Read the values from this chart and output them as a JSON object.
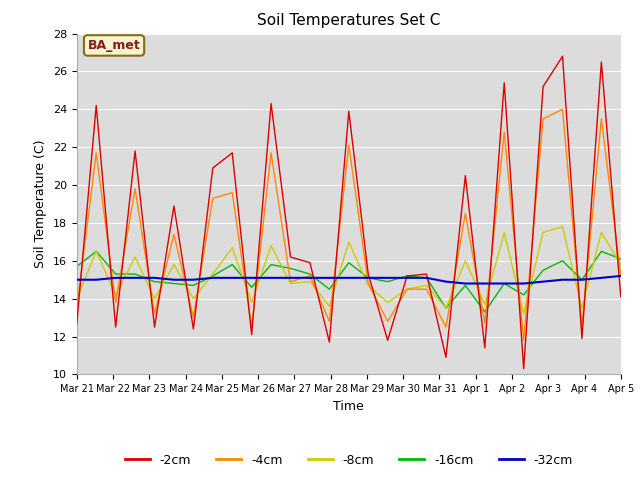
{
  "title": "Soil Temperatures Set C",
  "xlabel": "Time",
  "ylabel": "Soil Temperature (C)",
  "ylim": [
    10,
    28
  ],
  "xlim": [
    0,
    15
  ],
  "fig_bg_color": "#ffffff",
  "plot_bg_color": "#dcdcdc",
  "annotation_text": "BA_met",
  "annotation_bg": "#f5f5d0",
  "annotation_border": "#8b6914",
  "series_colors": {
    "-2cm": "#dd0000",
    "-4cm": "#ff8800",
    "-8cm": "#cccc00",
    "-16cm": "#00bb00",
    "-32cm": "#0000cc"
  },
  "x_tick_labels": [
    "Mar 21",
    "Mar 22",
    "Mar 23",
    "Mar 24",
    "Mar 25",
    "Mar 26",
    "Mar 27",
    "Mar 28",
    "Mar 29",
    "Mar 30",
    "Mar 31",
    "Apr 1",
    "Apr 2",
    "Apr 3",
    "Apr 4",
    "Apr 5"
  ],
  "x_tick_positions": [
    0,
    1,
    2,
    3,
    4,
    5,
    6,
    7,
    8,
    9,
    10,
    11,
    12,
    13,
    14,
    15
  ],
  "series_2cm": [
    12.7,
    24.2,
    12.5,
    21.8,
    12.5,
    18.9,
    12.4,
    20.9,
    21.7,
    12.1,
    24.3,
    16.2,
    15.9,
    11.7,
    23.9,
    15.3,
    11.8,
    15.2,
    15.3,
    10.9,
    20.5,
    11.4,
    25.4,
    10.3,
    25.2,
    26.8,
    11.9,
    26.5,
    14.1
  ],
  "series_4cm": [
    13.5,
    21.7,
    13.8,
    19.8,
    13.2,
    17.4,
    13.0,
    19.3,
    19.6,
    12.5,
    21.7,
    14.9,
    15.2,
    12.8,
    22.1,
    14.8,
    12.8,
    14.5,
    14.5,
    12.5,
    18.5,
    12.7,
    22.8,
    11.8,
    23.5,
    24.0,
    12.5,
    23.5,
    15.2
  ],
  "series_8cm": [
    14.0,
    16.5,
    14.2,
    16.2,
    14.0,
    15.8,
    14.0,
    15.3,
    16.7,
    13.8,
    16.8,
    14.8,
    14.9,
    13.6,
    17.0,
    14.7,
    13.8,
    14.5,
    14.7,
    13.5,
    16.0,
    13.7,
    17.5,
    13.2,
    17.5,
    17.8,
    13.5,
    17.5,
    15.8
  ],
  "series_16cm": [
    15.7,
    16.5,
    15.3,
    15.3,
    14.9,
    14.8,
    14.7,
    15.2,
    15.8,
    14.6,
    15.8,
    15.6,
    15.3,
    14.5,
    15.9,
    15.1,
    14.9,
    15.2,
    15.1,
    13.5,
    14.7,
    13.3,
    14.8,
    14.2,
    15.5,
    16.0,
    15.0,
    16.5,
    16.1
  ],
  "series_32cm": [
    15.0,
    15.0,
    15.1,
    15.1,
    15.1,
    15.0,
    15.0,
    15.1,
    15.1,
    15.1,
    15.1,
    15.1,
    15.1,
    15.1,
    15.1,
    15.1,
    15.1,
    15.1,
    15.1,
    14.9,
    14.8,
    14.8,
    14.8,
    14.8,
    14.9,
    15.0,
    15.0,
    15.1,
    15.2
  ]
}
